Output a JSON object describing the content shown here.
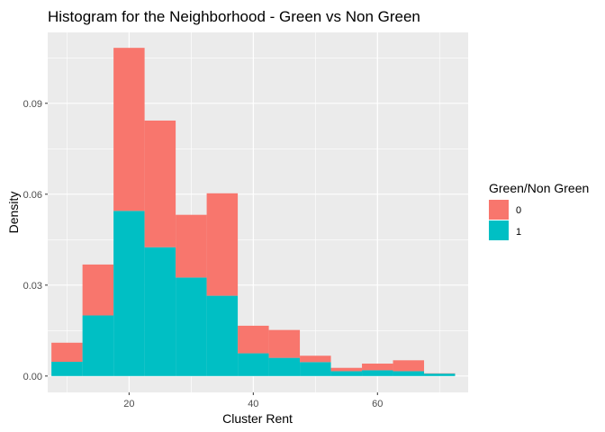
{
  "chart_data": {
    "type": "bar",
    "title": "Histogram for the Neighborhood - Green vs Non Green",
    "xlabel": "Cluster Rent",
    "ylabel": "Density",
    "xlim": [
      6.9,
      74.6
    ],
    "ylim": [
      -0.0054,
      0.1134
    ],
    "x_ticks": [
      20,
      40,
      60
    ],
    "x_tick_labels": [
      "20",
      "40",
      "60"
    ],
    "y_ticks": [
      0,
      0.03,
      0.06,
      0.09
    ],
    "y_tick_labels": [
      "0.00",
      "0.03",
      "0.06",
      "0.09"
    ],
    "bin_width": 5,
    "bin_starts": [
      7.5,
      12.5,
      17.5,
      22.5,
      27.5,
      32.5,
      37.5,
      42.5,
      47.5,
      52.5,
      57.5,
      62.5,
      67.5
    ],
    "stacked": true,
    "grid": true,
    "legend": {
      "title": "Green/Non Green",
      "position": "right"
    },
    "series": [
      {
        "name": "0",
        "color": "#F8766D",
        "values": [
          0.0063,
          0.0168,
          0.0538,
          0.0418,
          0.0207,
          0.0338,
          0.0091,
          0.0092,
          0.0021,
          0.0011,
          0.0022,
          0.0036,
          0.0001
        ]
      },
      {
        "name": "1",
        "color": "#00BFC4",
        "values": [
          0.0047,
          0.02,
          0.0545,
          0.0425,
          0.0325,
          0.0265,
          0.0075,
          0.006,
          0.0046,
          0.0016,
          0.0019,
          0.0016,
          0.0008
        ]
      }
    ],
    "panel_background": "#EBEBEB",
    "grid_color": "#FFFFFF"
  }
}
